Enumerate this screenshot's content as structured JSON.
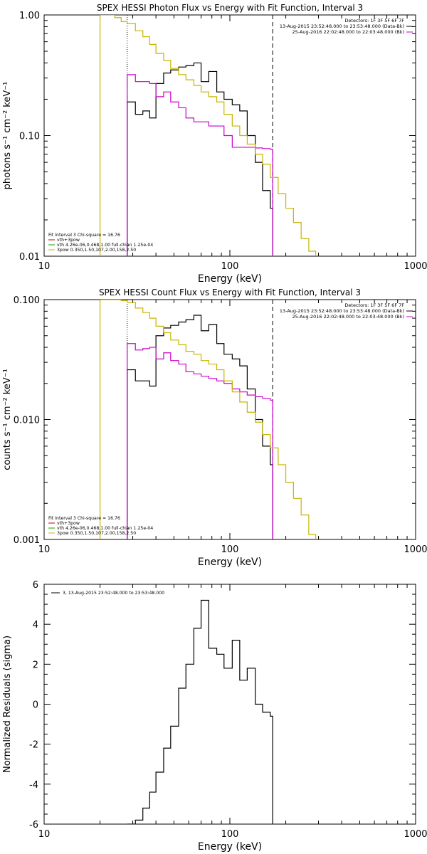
{
  "chart_data": [
    {
      "type": "line",
      "title": "SPEX HESSI Photon Flux vs Energy with Fit Function, Interval 3",
      "xlabel": "Energy (keV)",
      "ylabel": "photons s⁻¹ cm⁻² keV⁻¹",
      "xscale": "log",
      "yscale": "log",
      "xlim": [
        10,
        1000
      ],
      "ylim": [
        0.01,
        1.0
      ],
      "xticks": [
        "10",
        "100",
        "1000"
      ],
      "yticks": [
        "0.01",
        "0.10",
        "1.00"
      ],
      "vlines": [
        {
          "x": 28,
          "style": "dotted"
        },
        {
          "x": 170,
          "style": "dashed"
        }
      ],
      "legend_right": [
        {
          "text": "Detectors: 1F 3F 5F 6F 7F",
          "color": "#000000"
        },
        {
          "text": "13-Aug-2015 23:52:48.000 to 23:53:48.000 (Data-Bk)",
          "color": "#000000"
        },
        {
          "text": "25-Aug-2016 22:02:48.000 to 22:03:48.000 (Bk)",
          "color": "#cc00cc"
        }
      ],
      "legend_left": [
        {
          "text": "Fit Interval 3   Chi-square = 16.76",
          "color": "#000000"
        },
        {
          "text": "vth+3pow",
          "color": "#cc0000"
        },
        {
          "text": "vth 4.26e-06,0.468,1.00  full-chian 1.25e-04",
          "color": "#00aa00"
        },
        {
          "text": "3pow 0.350,1.50,107,2.00,158,2.50",
          "color": "#c8b400"
        }
      ],
      "series": [
        {
          "color": "#000000",
          "edges": [
            28,
            31,
            34,
            37,
            40,
            44,
            48,
            53,
            58,
            64,
            70,
            77,
            85,
            93,
            103,
            113,
            124,
            137,
            150,
            165,
            170
          ],
          "values": [
            0.19,
            0.15,
            0.16,
            0.14,
            0.27,
            0.33,
            0.35,
            0.37,
            0.38,
            0.4,
            0.28,
            0.34,
            0.23,
            0.2,
            0.18,
            0.16,
            0.1,
            0.06,
            0.035,
            0.025
          ]
        },
        {
          "color": "#cc00cc",
          "edges": [
            28,
            31,
            34,
            37,
            40,
            44,
            48,
            53,
            58,
            64,
            70,
            77,
            85,
            93,
            103,
            113,
            124,
            137,
            150,
            165,
            170
          ],
          "values": [
            0.32,
            0.28,
            0.28,
            0.27,
            0.21,
            0.23,
            0.19,
            0.17,
            0.14,
            0.13,
            0.13,
            0.12,
            0.12,
            0.1,
            0.08,
            0.08,
            0.08,
            0.079,
            0.078,
            0.077
          ]
        },
        {
          "color": "#c8b400",
          "edges": [
            20,
            22,
            24,
            26,
            28,
            31,
            34,
            37,
            40,
            44,
            48,
            53,
            58,
            64,
            70,
            77,
            85,
            93,
            103,
            113,
            124,
            137,
            150,
            165,
            182,
            200,
            220,
            242,
            266,
            290
          ],
          "values": [
            1.0,
            1.0,
            0.95,
            0.88,
            0.85,
            0.74,
            0.66,
            0.57,
            0.48,
            0.42,
            0.36,
            0.32,
            0.29,
            0.26,
            0.23,
            0.21,
            0.19,
            0.15,
            0.12,
            0.1,
            0.085,
            0.07,
            0.058,
            0.045,
            0.033,
            0.025,
            0.019,
            0.014,
            0.011
          ]
        }
      ]
    },
    {
      "type": "line",
      "title": "SPEX HESSI Count Flux vs Energy with Fit Function, Interval 3",
      "xlabel": "Energy (keV)",
      "ylabel": "counts s⁻¹ cm⁻² keV⁻¹",
      "xscale": "log",
      "yscale": "log",
      "xlim": [
        10,
        1000
      ],
      "ylim": [
        0.001,
        0.1
      ],
      "xticks": [
        "10",
        "100",
        "1000"
      ],
      "yticks": [
        "0.001",
        "0.010",
        "0.100"
      ],
      "vlines": [
        {
          "x": 28,
          "style": "dotted"
        },
        {
          "x": 170,
          "style": "dashed"
        }
      ],
      "legend_right": [
        {
          "text": "Detectors: 1F 3F 5F 6F 7F",
          "color": "#000000"
        },
        {
          "text": "13-Aug-2015 23:52:48.000 to 23:53:48.000 (Data-Bk)",
          "color": "#000000"
        },
        {
          "text": "25-Aug-2016 22:02:48.000 to 22:03:48.000 (Bk)",
          "color": "#cc00cc"
        }
      ],
      "legend_left": [
        {
          "text": "Fit Interval 3   Chi-square = 16.76",
          "color": "#000000"
        },
        {
          "text": "vth+3pow",
          "color": "#cc0000"
        },
        {
          "text": "vth 4.26e-06,0.468,1.00  full-chian 1.25e-04",
          "color": "#00aa00"
        },
        {
          "text": "3pow 0.350,1.50,107,2.00,158,2.50",
          "color": "#c8b400"
        }
      ],
      "series": [
        {
          "color": "#000000",
          "edges": [
            28,
            31,
            34,
            37,
            40,
            44,
            48,
            53,
            58,
            64,
            70,
            77,
            85,
            93,
            103,
            113,
            124,
            137,
            150,
            165,
            170
          ],
          "values": [
            0.026,
            0.021,
            0.021,
            0.019,
            0.05,
            0.058,
            0.061,
            0.065,
            0.068,
            0.074,
            0.055,
            0.062,
            0.043,
            0.035,
            0.032,
            0.028,
            0.018,
            0.01,
            0.006,
            0.0042
          ]
        },
        {
          "color": "#cc00cc",
          "edges": [
            28,
            31,
            34,
            37,
            40,
            44,
            48,
            53,
            58,
            64,
            70,
            77,
            85,
            93,
            103,
            113,
            124,
            137,
            150,
            165,
            170
          ],
          "values": [
            0.043,
            0.038,
            0.039,
            0.04,
            0.032,
            0.036,
            0.031,
            0.029,
            0.025,
            0.024,
            0.023,
            0.022,
            0.021,
            0.02,
            0.018,
            0.017,
            0.016,
            0.0155,
            0.015,
            0.0145
          ]
        },
        {
          "color": "#c8b400",
          "edges": [
            20,
            22,
            24,
            26,
            28,
            31,
            34,
            37,
            40,
            44,
            48,
            53,
            58,
            64,
            70,
            77,
            85,
            93,
            103,
            113,
            124,
            137,
            150,
            165,
            182,
            200,
            220,
            242,
            266,
            290
          ],
          "values": [
            0.1,
            0.1,
            0.1,
            0.098,
            0.095,
            0.085,
            0.078,
            0.07,
            0.06,
            0.053,
            0.046,
            0.042,
            0.037,
            0.035,
            0.031,
            0.029,
            0.026,
            0.021,
            0.017,
            0.014,
            0.0115,
            0.0095,
            0.0075,
            0.0058,
            0.0042,
            0.003,
            0.0022,
            0.0016,
            0.0011
          ]
        }
      ]
    },
    {
      "type": "line",
      "title": "",
      "xlabel": "Energy (keV)",
      "ylabel": "Normalized Residuals (sigma)",
      "xscale": "log",
      "yscale": "linear",
      "xlim": [
        10,
        1000
      ],
      "ylim": [
        -6,
        6
      ],
      "xticks": [
        "10",
        "100",
        "1000"
      ],
      "yticks": [
        "-6",
        "-4",
        "-2",
        "0",
        "2",
        "4",
        "6"
      ],
      "legend_left": [
        {
          "text": "3, 13-Aug-2015 23:52:48.000 to 23:53:48.000",
          "color": "#000000"
        }
      ],
      "series": [
        {
          "color": "#000000",
          "edges": [
            28,
            31,
            34,
            37,
            40,
            44,
            48,
            53,
            58,
            64,
            70,
            77,
            85,
            93,
            103,
            113,
            124,
            137,
            150,
            165,
            170
          ],
          "values": [
            -6.0,
            -5.8,
            -5.2,
            -4.4,
            -3.4,
            -2.2,
            -1.1,
            0.8,
            2.0,
            3.8,
            5.2,
            2.8,
            2.5,
            1.8,
            3.2,
            1.2,
            1.8,
            0.0,
            -0.4,
            -0.6
          ]
        }
      ]
    }
  ]
}
